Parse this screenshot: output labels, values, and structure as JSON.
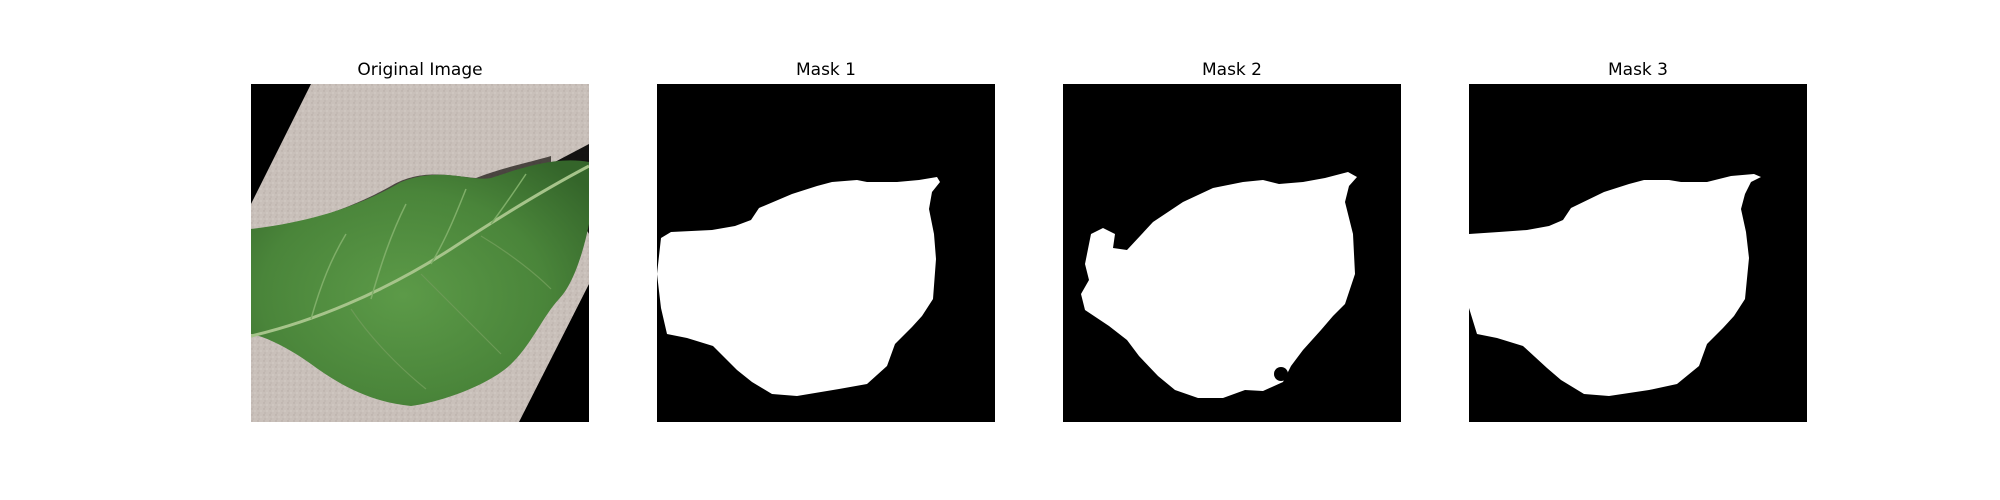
{
  "figure": {
    "panels": [
      {
        "title": "Original Image"
      },
      {
        "title": "Mask 1"
      },
      {
        "title": "Mask 2"
      },
      {
        "title": "Mask 3"
      }
    ]
  },
  "colors": {
    "background": "#ffffff",
    "mask_background": "#000000",
    "mask_foreground": "#ffffff",
    "leaf_green": "#4f8a3c",
    "surface_gray": "#c9bfb8"
  }
}
